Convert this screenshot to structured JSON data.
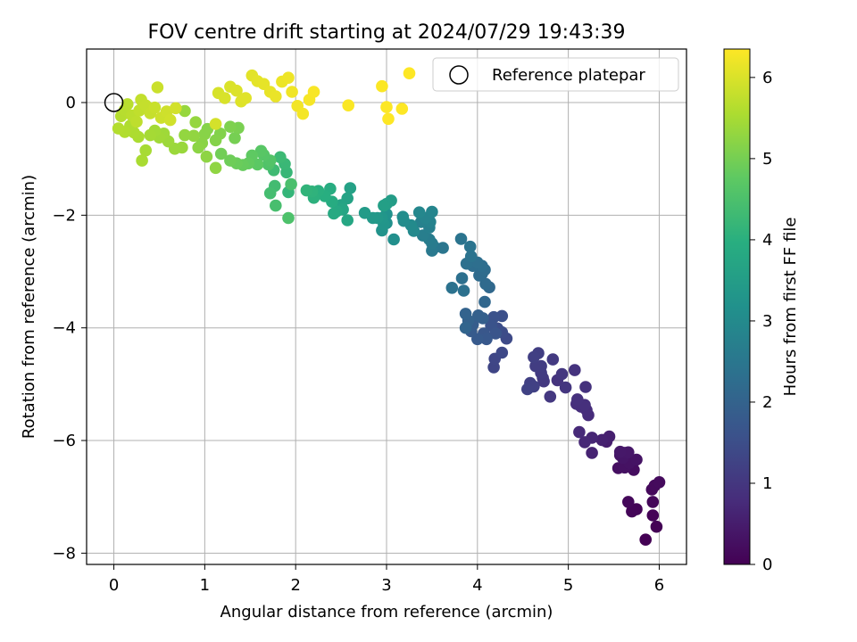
{
  "chart_data": {
    "type": "scatter",
    "title": "FOV centre drift starting at 2024/07/29 19:43:39",
    "xlabel": "Angular distance from reference (arcmin)",
    "ylabel": "Rotation from reference (arcmin)",
    "xlim": [
      -0.3,
      6.3
    ],
    "ylim": [
      -8.2,
      0.95
    ],
    "x_ticks": [
      0,
      1,
      2,
      3,
      4,
      5,
      6
    ],
    "y_ticks": [
      -8,
      -6,
      -4,
      -2,
      0
    ],
    "x_tick_labels": [
      "0",
      "1",
      "2",
      "3",
      "4",
      "5",
      "6"
    ],
    "y_tick_labels": [
      "−8",
      "−6",
      "−4",
      "−2",
      "0"
    ],
    "grid": true,
    "legend": {
      "position": "top-right",
      "label": "Reference platepar",
      "marker": "open-circle"
    },
    "reference_point": {
      "x": 0,
      "y": 0
    },
    "colorbar": {
      "label": "Hours from first FF file",
      "colormap": "viridis",
      "range": [
        0,
        6.35
      ],
      "ticks": [
        0,
        1,
        2,
        3,
        4,
        5,
        6
      ],
      "tick_labels": [
        "0",
        "1",
        "2",
        "3",
        "4",
        "5",
        "6"
      ]
    },
    "points": [
      [
        5.85,
        -7.76,
        0.0
      ],
      [
        5.97,
        -7.53,
        0.02
      ],
      [
        5.93,
        -7.33,
        0.04
      ],
      [
        5.75,
        -7.22,
        0.06
      ],
      [
        5.7,
        -7.26,
        0.08
      ],
      [
        5.93,
        -7.09,
        0.1
      ],
      [
        5.66,
        -7.09,
        0.12
      ],
      [
        5.92,
        -6.87,
        0.14
      ],
      [
        5.95,
        -6.8,
        0.16
      ],
      [
        6.0,
        -6.74,
        0.18
      ],
      [
        5.72,
        -6.52,
        0.22
      ],
      [
        5.55,
        -6.49,
        0.26
      ],
      [
        5.62,
        -6.48,
        0.28
      ],
      [
        5.67,
        -6.4,
        0.3
      ],
      [
        5.75,
        -6.34,
        0.32
      ],
      [
        5.57,
        -6.26,
        0.34
      ],
      [
        5.6,
        -6.31,
        0.36
      ],
      [
        5.62,
        -6.22,
        0.38
      ],
      [
        5.66,
        -6.21,
        0.4
      ],
      [
        5.57,
        -6.2,
        0.42
      ],
      [
        5.42,
        -6.02,
        0.5
      ],
      [
        5.45,
        -5.93,
        0.54
      ],
      [
        5.37,
        -5.99,
        0.58
      ],
      [
        5.26,
        -6.22,
        0.62
      ],
      [
        5.26,
        -5.95,
        0.66
      ],
      [
        5.18,
        -6.03,
        0.7
      ],
      [
        5.12,
        -5.85,
        0.74
      ],
      [
        5.22,
        -5.55,
        0.78
      ],
      [
        5.2,
        -5.46,
        0.8
      ],
      [
        5.14,
        -5.4,
        0.82
      ],
      [
        5.09,
        -5.35,
        0.84
      ],
      [
        5.18,
        -5.37,
        0.86
      ],
      [
        5.1,
        -5.27,
        0.88
      ],
      [
        5.19,
        -5.05,
        0.9
      ],
      [
        5.07,
        -4.75,
        0.92
      ],
      [
        4.88,
        -4.93,
        0.95
      ],
      [
        4.97,
        -5.06,
        0.98
      ],
      [
        4.93,
        -4.82,
        1.0
      ],
      [
        4.8,
        -5.22,
        1.02
      ],
      [
        4.73,
        -4.95,
        1.04
      ],
      [
        4.72,
        -4.89,
        1.06
      ],
      [
        4.83,
        -4.56,
        1.08
      ],
      [
        4.7,
        -4.8,
        1.1
      ],
      [
        4.7,
        -4.68,
        1.12
      ],
      [
        4.64,
        -4.68,
        1.14
      ],
      [
        4.67,
        -4.45,
        1.16
      ],
      [
        4.62,
        -4.52,
        1.18
      ],
      [
        4.58,
        -4.98,
        1.2
      ],
      [
        4.62,
        -5.04,
        1.22
      ],
      [
        4.55,
        -5.09,
        1.24
      ],
      [
        4.18,
        -4.7,
        1.3
      ],
      [
        4.19,
        -4.55,
        1.34
      ],
      [
        4.27,
        -4.44,
        1.38
      ],
      [
        4.32,
        -4.19,
        1.42
      ],
      [
        4.27,
        -4.08,
        1.46
      ],
      [
        4.22,
        -4.01,
        1.5
      ],
      [
        4.27,
        -3.79,
        1.54
      ],
      [
        4.18,
        -3.81,
        1.58
      ],
      [
        4.15,
        -3.96,
        1.62
      ],
      [
        4.2,
        -4.1,
        1.66
      ],
      [
        4.07,
        -4.1,
        1.7
      ],
      [
        4.1,
        -4.2,
        1.74
      ],
      [
        4.0,
        -4.2,
        1.78
      ],
      [
        3.93,
        -4.06,
        1.82
      ],
      [
        3.95,
        -3.94,
        1.86
      ],
      [
        4.06,
        -3.83,
        1.9
      ],
      [
        4.01,
        -3.78,
        1.94
      ],
      [
        3.9,
        -3.87,
        1.98
      ],
      [
        3.87,
        -3.75,
        2.02
      ],
      [
        3.87,
        -4.0,
        2.06
      ],
      [
        4.08,
        -3.54,
        2.1
      ],
      [
        4.13,
        -3.28,
        2.14
      ],
      [
        4.09,
        -3.22,
        2.18
      ],
      [
        4.05,
        -3.04,
        2.2
      ],
      [
        4.02,
        -3.07,
        2.22
      ],
      [
        4.08,
        -2.97,
        2.24
      ],
      [
        3.95,
        -2.9,
        2.26
      ],
      [
        4.05,
        -2.9,
        2.28
      ],
      [
        4.0,
        -2.84,
        2.3
      ],
      [
        3.88,
        -2.86,
        2.32
      ],
      [
        3.83,
        -3.12,
        2.34
      ],
      [
        3.85,
        -3.34,
        2.36
      ],
      [
        3.72,
        -3.29,
        2.38
      ],
      [
        3.93,
        -2.73,
        2.4
      ],
      [
        3.92,
        -2.56,
        2.42
      ],
      [
        3.82,
        -2.42,
        2.44
      ],
      [
        3.62,
        -2.58,
        2.48
      ],
      [
        3.53,
        -2.57,
        2.52
      ],
      [
        3.5,
        -2.63,
        2.56
      ],
      [
        3.5,
        -2.5,
        2.6
      ],
      [
        3.47,
        -2.43,
        2.64
      ],
      [
        3.4,
        -2.36,
        2.68
      ],
      [
        3.47,
        -2.22,
        2.72
      ],
      [
        3.38,
        -2.12,
        2.76
      ],
      [
        3.48,
        -2.12,
        2.8
      ],
      [
        3.43,
        -2.05,
        2.84
      ],
      [
        3.5,
        -1.94,
        2.88
      ],
      [
        3.36,
        -1.95,
        2.92
      ],
      [
        3.3,
        -2.28,
        2.96
      ],
      [
        3.27,
        -2.18,
        3.0
      ],
      [
        3.19,
        -2.1,
        3.04
      ],
      [
        3.18,
        -2.03,
        3.08
      ],
      [
        3.08,
        -2.43,
        3.12
      ],
      [
        3.0,
        -2.14,
        3.16
      ],
      [
        3.0,
        -1.98,
        3.2
      ],
      [
        2.95,
        -2.27,
        3.24
      ],
      [
        2.97,
        -2.16,
        3.28
      ],
      [
        2.95,
        -2.05,
        3.32
      ],
      [
        2.9,
        -2.05,
        3.36
      ],
      [
        2.85,
        -2.05,
        3.4
      ],
      [
        2.76,
        -1.96,
        3.44
      ],
      [
        3.05,
        -1.74,
        3.48
      ],
      [
        3.0,
        -1.8,
        3.52
      ],
      [
        2.97,
        -1.83,
        3.56
      ],
      [
        2.6,
        -1.52,
        3.6
      ],
      [
        2.57,
        -1.7,
        3.64
      ],
      [
        2.5,
        -1.82,
        3.68
      ],
      [
        2.52,
        -1.9,
        3.72
      ],
      [
        2.57,
        -2.09,
        3.76
      ],
      [
        2.45,
        -1.93,
        3.8
      ],
      [
        2.42,
        -1.97,
        3.84
      ],
      [
        2.4,
        -1.76,
        3.88
      ],
      [
        2.38,
        -1.53,
        3.92
      ],
      [
        2.32,
        -1.66,
        3.96
      ],
      [
        2.25,
        -1.57,
        4.0
      ],
      [
        2.2,
        -1.69,
        4.04
      ],
      [
        2.18,
        -1.58,
        4.08
      ],
      [
        2.12,
        -1.56,
        4.12
      ],
      [
        1.92,
        -1.59,
        4.16
      ],
      [
        1.9,
        -1.24,
        4.2
      ],
      [
        1.88,
        -1.09,
        4.24
      ],
      [
        1.83,
        -0.97,
        4.28
      ],
      [
        1.76,
        -1.2,
        4.32
      ],
      [
        1.77,
        -1.48,
        4.36
      ],
      [
        1.72,
        -1.61,
        4.4
      ],
      [
        1.78,
        -1.83,
        4.44
      ],
      [
        1.95,
        -1.45,
        4.48
      ],
      [
        1.92,
        -2.05,
        4.52
      ],
      [
        1.7,
        -1.1,
        4.56
      ],
      [
        1.72,
        -1.03,
        4.6
      ],
      [
        1.65,
        -0.93,
        4.64
      ],
      [
        1.62,
        -0.86,
        4.68
      ],
      [
        1.58,
        -1.1,
        4.72
      ],
      [
        1.52,
        -0.94,
        4.76
      ],
      [
        1.48,
        -1.08,
        4.8
      ],
      [
        1.42,
        -1.11,
        4.84
      ],
      [
        1.35,
        -1.08,
        4.88
      ],
      [
        1.28,
        -1.03,
        4.92
      ],
      [
        1.18,
        -0.91,
        4.96
      ],
      [
        1.33,
        -0.63,
        5.0
      ],
      [
        1.37,
        -0.45,
        5.04
      ],
      [
        1.28,
        -0.43,
        5.08
      ],
      [
        1.17,
        -0.55,
        5.12
      ],
      [
        1.12,
        -0.67,
        5.14
      ],
      [
        1.03,
        -0.47,
        5.16
      ],
      [
        1.0,
        -0.56,
        5.18
      ],
      [
        0.97,
        -0.72,
        5.2
      ],
      [
        0.93,
        -0.8,
        5.22
      ],
      [
        1.02,
        -0.96,
        5.24
      ],
      [
        1.12,
        -1.16,
        5.26
      ],
      [
        0.88,
        -0.59,
        5.28
      ],
      [
        0.78,
        -0.58,
        5.3
      ],
      [
        0.9,
        -0.35,
        5.32
      ],
      [
        0.78,
        -0.15,
        5.34
      ],
      [
        0.75,
        -0.8,
        5.36
      ],
      [
        0.67,
        -0.82,
        5.38
      ],
      [
        0.6,
        -0.69,
        5.4
      ],
      [
        0.55,
        -0.55,
        5.42
      ],
      [
        0.5,
        -0.62,
        5.44
      ],
      [
        0.45,
        -0.5,
        5.46
      ],
      [
        0.4,
        -0.58,
        5.48
      ],
      [
        0.35,
        -0.85,
        5.5
      ],
      [
        0.31,
        -1.03,
        5.52
      ],
      [
        0.27,
        -0.61,
        5.54
      ],
      [
        0.22,
        -0.53,
        5.56
      ],
      [
        0.18,
        -0.41,
        5.58
      ],
      [
        0.12,
        -0.52,
        5.6
      ],
      [
        0.05,
        -0.46,
        5.62
      ],
      [
        0.08,
        -0.24,
        5.64
      ],
      [
        0.12,
        -0.13,
        5.66
      ],
      [
        0.15,
        -0.03,
        5.68
      ],
      [
        0.2,
        -0.23,
        5.7
      ],
      [
        0.25,
        -0.34,
        5.72
      ],
      [
        0.28,
        -0.14,
        5.74
      ],
      [
        0.3,
        0.05,
        5.76
      ],
      [
        0.35,
        -0.05,
        5.78
      ],
      [
        0.4,
        -0.19,
        5.8
      ],
      [
        0.45,
        -0.09,
        5.82
      ],
      [
        0.48,
        0.27,
        5.84
      ],
      [
        0.52,
        -0.27,
        5.86
      ],
      [
        0.58,
        -0.16,
        5.88
      ],
      [
        0.62,
        -0.31,
        5.9
      ],
      [
        0.68,
        -0.1,
        5.92
      ],
      [
        1.12,
        -0.38,
        5.94
      ],
      [
        1.15,
        0.17,
        5.96
      ],
      [
        1.22,
        0.08,
        5.98
      ],
      [
        1.28,
        0.28,
        6.0
      ],
      [
        1.35,
        0.21,
        6.02
      ],
      [
        1.4,
        0.02,
        6.04
      ],
      [
        1.45,
        0.08,
        6.06
      ],
      [
        1.52,
        0.48,
        6.08
      ],
      [
        1.58,
        0.38,
        6.1
      ],
      [
        1.65,
        0.33,
        6.12
      ],
      [
        1.72,
        0.19,
        6.14
      ],
      [
        1.78,
        0.11,
        6.16
      ],
      [
        1.85,
        0.37,
        6.18
      ],
      [
        1.92,
        0.44,
        6.2
      ],
      [
        1.96,
        0.19,
        6.22
      ],
      [
        2.02,
        -0.06,
        6.24
      ],
      [
        2.08,
        -0.2,
        6.26
      ],
      [
        2.15,
        0.05,
        6.28
      ],
      [
        2.2,
        0.19,
        6.3
      ],
      [
        2.58,
        -0.05,
        6.32
      ],
      [
        2.95,
        0.29,
        6.33
      ],
      [
        3.0,
        -0.08,
        6.34
      ],
      [
        3.02,
        -0.29,
        6.35
      ],
      [
        3.17,
        -0.11,
        6.35
      ],
      [
        3.25,
        0.52,
        6.35
      ]
    ]
  }
}
